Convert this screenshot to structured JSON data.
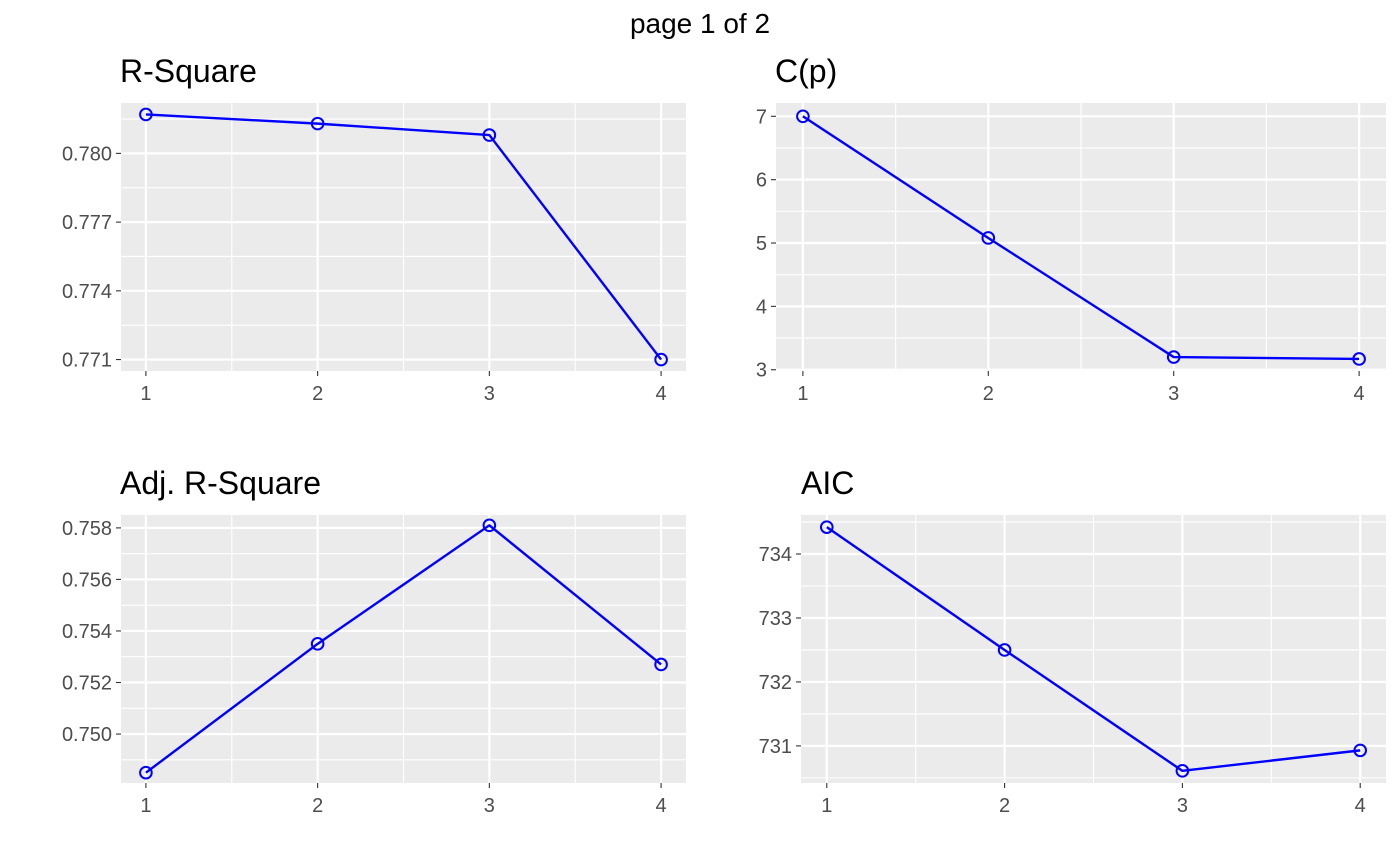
{
  "page_title": "page 1 of 2",
  "colors": {
    "series": "#0000ff",
    "panel_background": "#ebebeb",
    "grid": "#ffffff",
    "tick_text": "#4d4d4d"
  },
  "chart_data": [
    {
      "type": "line",
      "title": "R-Square",
      "xlabel": "",
      "ylabel": "",
      "x": [
        1,
        2,
        3,
        4
      ],
      "series": [
        {
          "values": [
            0.7817,
            0.7813,
            0.7808,
            0.771
          ]
        }
      ],
      "xlim": [
        0.855,
        4.145
      ],
      "ylim": [
        0.7705,
        0.7822
      ],
      "xticks": [
        1,
        2,
        3,
        4
      ],
      "xtick_labels": [
        "1",
        "2",
        "3",
        "4"
      ],
      "yticks": [
        0.771,
        0.774,
        0.777,
        0.78
      ],
      "ytick_labels": [
        "0.771",
        "0.774",
        "0.777",
        "0.780"
      ],
      "grid": true,
      "legend": "none"
    },
    {
      "type": "line",
      "title": "C(p)",
      "xlabel": "",
      "ylabel": "",
      "x": [
        1,
        2,
        3,
        4
      ],
      "series": [
        {
          "values": [
            7.0,
            5.08,
            3.2,
            3.17
          ]
        }
      ],
      "xlim": [
        0.855,
        4.145
      ],
      "ylim": [
        2.98,
        7.21
      ],
      "xticks": [
        1,
        2,
        3,
        4
      ],
      "xtick_labels": [
        "1",
        "2",
        "3",
        "4"
      ],
      "yticks": [
        3,
        4,
        5,
        6,
        7
      ],
      "ytick_labels": [
        "3",
        "4",
        "5",
        "6",
        "7"
      ],
      "grid": true,
      "legend": "none"
    },
    {
      "type": "line",
      "title": "Adj. R-Square",
      "xlabel": "",
      "ylabel": "",
      "x": [
        1,
        2,
        3,
        4
      ],
      "series": [
        {
          "values": [
            0.7485,
            0.7535,
            0.7581,
            0.7527
          ]
        }
      ],
      "xlim": [
        0.855,
        4.145
      ],
      "ylim": [
        0.7481,
        0.7585
      ],
      "xticks": [
        1,
        2,
        3,
        4
      ],
      "xtick_labels": [
        "1",
        "2",
        "3",
        "4"
      ],
      "yticks": [
        0.75,
        0.752,
        0.754,
        0.756,
        0.758
      ],
      "ytick_labels": [
        "0.750",
        "0.752",
        "0.754",
        "0.756",
        "0.758"
      ],
      "grid": true,
      "legend": "none"
    },
    {
      "type": "line",
      "title": "AIC",
      "xlabel": "",
      "ylabel": "",
      "x": [
        1,
        2,
        3,
        4
      ],
      "series": [
        {
          "values": [
            734.42,
            732.5,
            730.61,
            730.93
          ]
        }
      ],
      "xlim": [
        0.855,
        4.145
      ],
      "ylim": [
        730.42,
        734.61
      ],
      "xticks": [
        1,
        2,
        3,
        4
      ],
      "xtick_labels": [
        "1",
        "2",
        "3",
        "4"
      ],
      "yticks": [
        731,
        732,
        733,
        734
      ],
      "ytick_labels": [
        "731",
        "732",
        "733",
        "734"
      ],
      "grid": true,
      "legend": "none"
    }
  ]
}
